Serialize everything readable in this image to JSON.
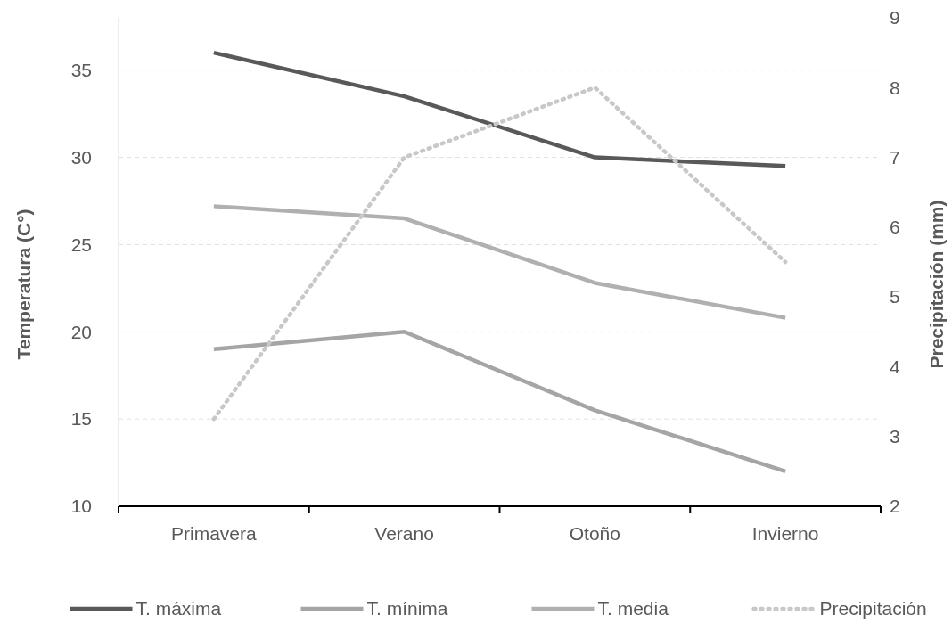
{
  "chart_data": {
    "type": "line",
    "categories": [
      "Primavera",
      "Verano",
      "Otoño",
      "Invierno"
    ],
    "ylabel": "Temperatura (C°)",
    "y2label": "Precipitación (mm)",
    "ylim": [
      10,
      38
    ],
    "yticks": [
      10,
      15,
      20,
      25,
      30,
      35
    ],
    "y2lim": [
      2,
      9
    ],
    "y2ticks": [
      2,
      3,
      4,
      5,
      6,
      7,
      8,
      9
    ],
    "grid": "y",
    "legend": "bottom",
    "marker": "none",
    "series": [
      {
        "name": "T. máxima",
        "color": "#595959",
        "values": [
          36,
          33.5,
          30,
          29.5
        ]
      },
      {
        "name": "T. mínima",
        "color": "#a5a5a5",
        "values": [
          19,
          20,
          15.5,
          12
        ]
      },
      {
        "name": "T. media",
        "color": "#b0b0b0",
        "values": [
          27.2,
          26.5,
          22.8,
          20.8
        ]
      },
      {
        "name": "Precipitación",
        "color": "#c8c8c8",
        "values": [
          3.25,
          7,
          8,
          5.5
        ],
        "axis": "y2",
        "line_style": "dotted"
      }
    ]
  }
}
